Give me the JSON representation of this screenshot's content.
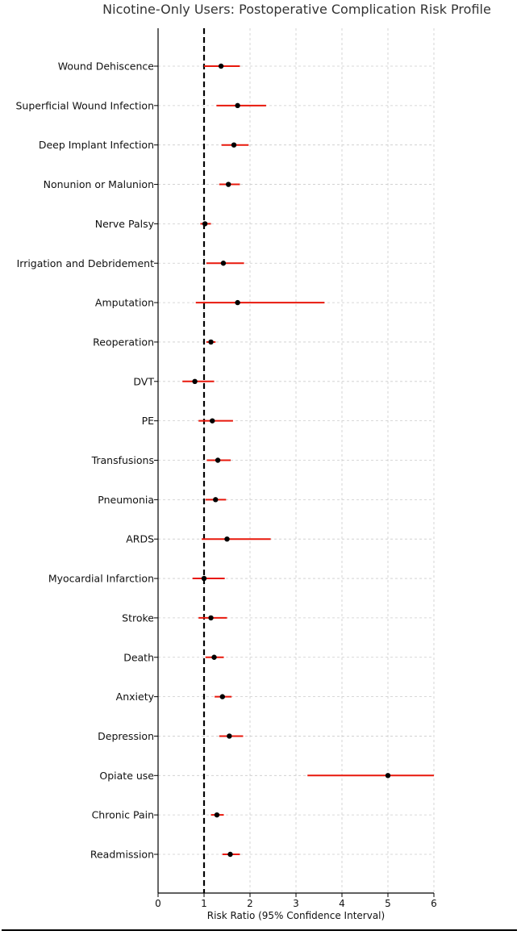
{
  "chart_data": {
    "type": "forest",
    "title": "Nicotine-Only Users: Postoperative Complication Risk Profile",
    "xlabel": "Risk Ratio (95% Confidence Interval)",
    "xlim": [
      0,
      6
    ],
    "xticks": [
      0,
      1,
      2,
      3,
      4,
      5,
      6
    ],
    "reference_line": 1,
    "grid": true,
    "colors": {
      "interval": "#e8180c",
      "point": "#000000",
      "reference": "#000000",
      "grid": "#cccccc",
      "axis": "#000000"
    },
    "rows": [
      {
        "label": "Wound Dehiscence",
        "rr": 1.37,
        "lower": 1.0,
        "upper": 1.78
      },
      {
        "label": "Superficial Wound Infection",
        "rr": 1.73,
        "lower": 1.27,
        "upper": 2.35
      },
      {
        "label": "Deep Implant Infection",
        "rr": 1.65,
        "lower": 1.38,
        "upper": 1.97
      },
      {
        "label": "Nonunion or Malunion",
        "rr": 1.53,
        "lower": 1.33,
        "upper": 1.78
      },
      {
        "label": "Nerve Palsy",
        "rr": 1.02,
        "lower": 0.92,
        "upper": 1.15
      },
      {
        "label": "Irrigation and Debridement",
        "rr": 1.42,
        "lower": 1.05,
        "upper": 1.87
      },
      {
        "label": "Amputation",
        "rr": 1.73,
        "lower": 0.82,
        "upper": 3.62
      },
      {
        "label": "Reoperation",
        "rr": 1.15,
        "lower": 1.05,
        "upper": 1.25
      },
      {
        "label": "DVT",
        "rr": 0.8,
        "lower": 0.53,
        "upper": 1.22
      },
      {
        "label": "PE",
        "rr": 1.18,
        "lower": 0.88,
        "upper": 1.63
      },
      {
        "label": "Transfusions",
        "rr": 1.3,
        "lower": 1.06,
        "upper": 1.58
      },
      {
        "label": "Pneumonia",
        "rr": 1.25,
        "lower": 1.03,
        "upper": 1.48
      },
      {
        "label": "ARDS",
        "rr": 1.5,
        "lower": 0.95,
        "upper": 2.45
      },
      {
        "label": "Myocardial Infarction",
        "rr": 1.0,
        "lower": 0.75,
        "upper": 1.45
      },
      {
        "label": "Stroke",
        "rr": 1.15,
        "lower": 0.88,
        "upper": 1.5
      },
      {
        "label": "Death",
        "rr": 1.22,
        "lower": 1.03,
        "upper": 1.43
      },
      {
        "label": "Anxiety",
        "rr": 1.4,
        "lower": 1.23,
        "upper": 1.6
      },
      {
        "label": "Depression",
        "rr": 1.55,
        "lower": 1.33,
        "upper": 1.85
      },
      {
        "label": "Opiate use",
        "rr": 5.0,
        "lower": 3.25,
        "upper": 6.0
      },
      {
        "label": "Chronic Pain",
        "rr": 1.28,
        "lower": 1.15,
        "upper": 1.43
      },
      {
        "label": "Readmission",
        "rr": 1.57,
        "lower": 1.4,
        "upper": 1.78
      }
    ]
  }
}
